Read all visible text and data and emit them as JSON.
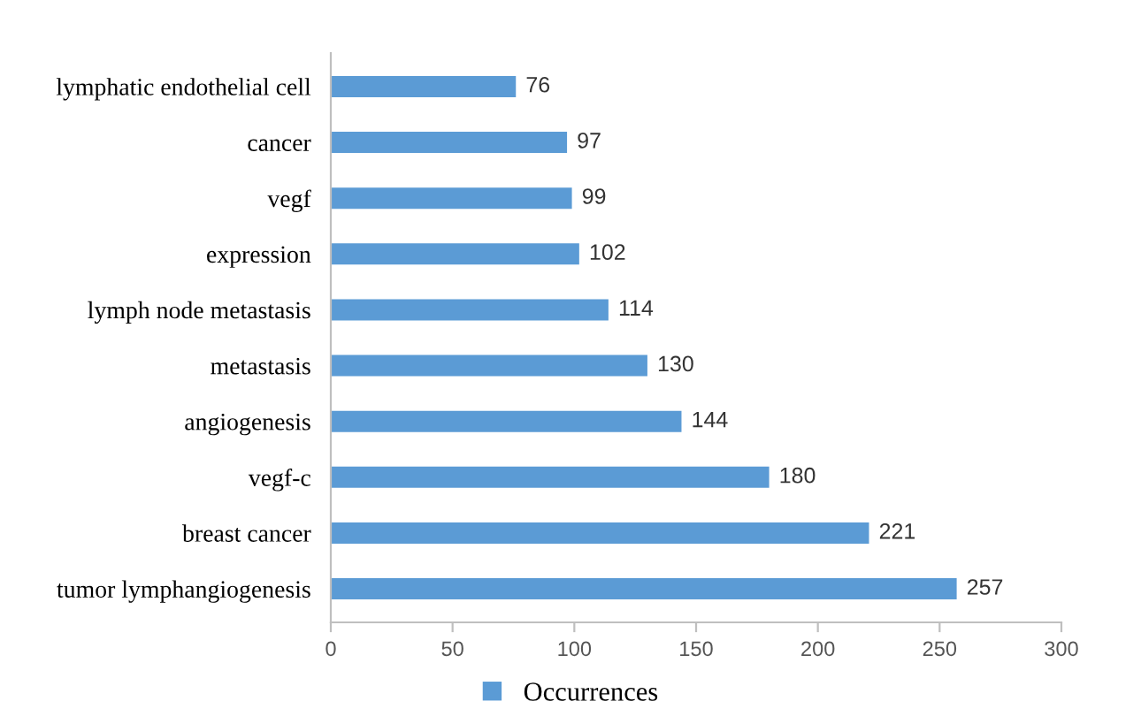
{
  "chart_data": {
    "type": "bar",
    "orientation": "horizontal",
    "categories": [
      "lymphatic endothelial cell",
      "cancer",
      "vegf",
      "expression",
      "lymph node metastasis",
      "metastasis",
      "angiogenesis",
      "vegf-c",
      "breast cancer",
      "tumor lymphangiogenesis"
    ],
    "series": [
      {
        "name": "Occurrences",
        "color": "#5b9bd5",
        "values": [
          76,
          97,
          99,
          102,
          114,
          130,
          144,
          180,
          221,
          257
        ]
      }
    ],
    "xlim": [
      0,
      300
    ],
    "xticks": [
      0,
      50,
      100,
      150,
      200,
      250,
      300
    ],
    "data_labels": true,
    "legend": "bottom",
    "grid": false
  }
}
